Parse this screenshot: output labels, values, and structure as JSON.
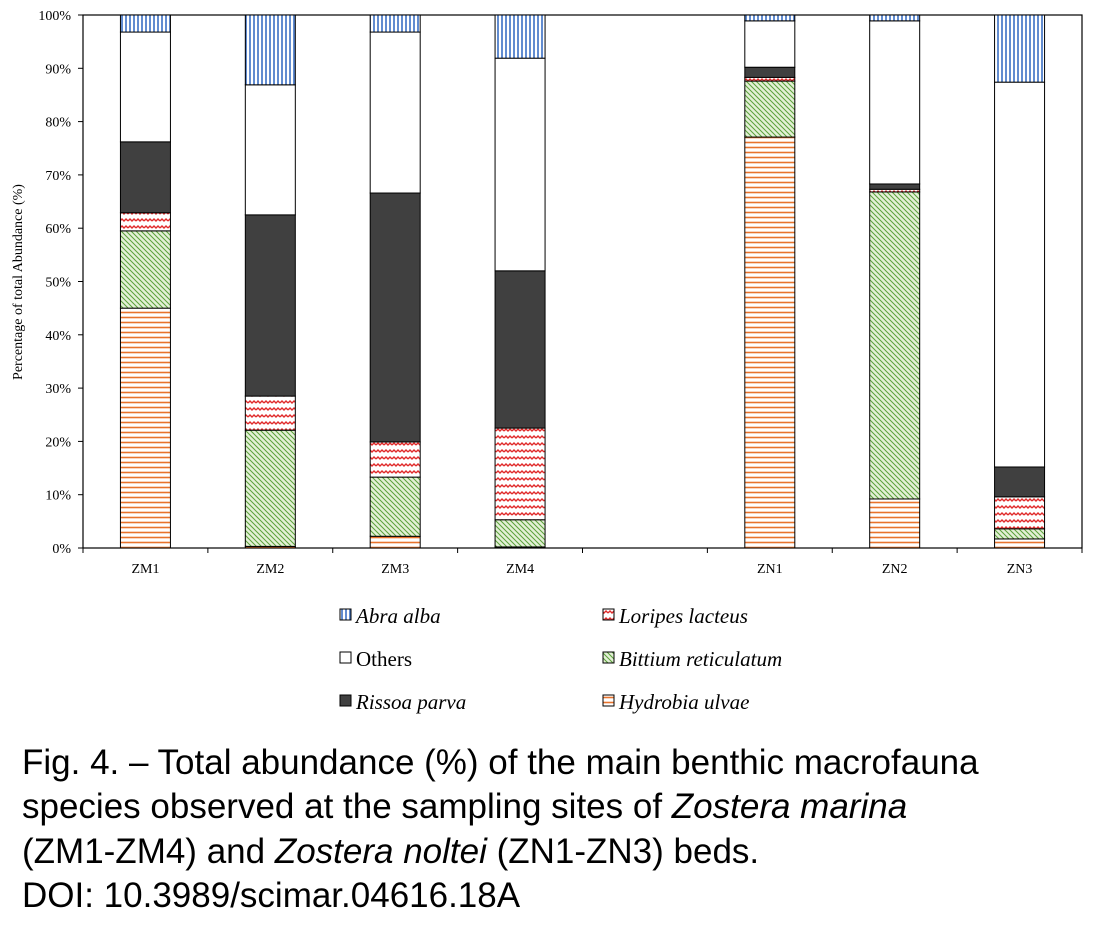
{
  "chart_data": {
    "type": "stacked-bar",
    "ylabel": "Percentage of total Abundance (%)",
    "categories": [
      "ZM1",
      "ZM2",
      "ZM3",
      "ZM4",
      null,
      "ZN1",
      "ZN2",
      "ZN3"
    ],
    "series": [
      {
        "name": "Hydrobia ulvae",
        "color": "#e8732c",
        "values": [
          45,
          0.3,
          2.2,
          0.2,
          null,
          77.1,
          9.2,
          1.7
        ]
      },
      {
        "name": "Bittium reticulatum",
        "color": "#5aa13a",
        "values": [
          14.5,
          21.8,
          11.1,
          5.1,
          null,
          10.5,
          57.6,
          1.9
        ]
      },
      {
        "name": "Loripes lacteus",
        "color": "#e02a2a",
        "values": [
          3.4,
          6.4,
          6.6,
          17.2,
          null,
          0.7,
          0.5,
          6
        ]
      },
      {
        "name": "Rissoa parva",
        "color": "#404040",
        "values": [
          13.3,
          34,
          46.7,
          29.5,
          null,
          1.9,
          1,
          5.6
        ]
      },
      {
        "name": "Others",
        "color": "#ffffff",
        "values": [
          20.6,
          24.4,
          30.2,
          39.9,
          null,
          8.7,
          30.6,
          72.2
        ]
      },
      {
        "name": "Abra alba",
        "color": "#3a6fc4",
        "values": [
          3.2,
          13.1,
          3.2,
          8.1,
          null,
          1.1,
          1.1,
          12.6
        ]
      }
    ],
    "ylim": [
      0,
      100
    ],
    "yticks": [
      {
        "value": 0,
        "label": "0%"
      },
      {
        "value": 10,
        "label": "10%"
      },
      {
        "value": 20,
        "label": "20%"
      },
      {
        "value": 30,
        "label": "30%"
      },
      {
        "value": 40,
        "label": "40%"
      },
      {
        "value": 50,
        "label": "50%"
      },
      {
        "value": 60,
        "label": "60%"
      },
      {
        "value": 70,
        "label": "70%"
      },
      {
        "value": 80,
        "label": "80%"
      },
      {
        "value": 90,
        "label": "90%"
      },
      {
        "value": 100,
        "label": "100%"
      }
    ],
    "grid": false
  },
  "caption": {
    "lines": [
      [
        "Fig. 4. – Total abundance (%) of the main benthic macrofauna"
      ],
      [
        "species observed at the sampling sites of ",
        "Zostera marina"
      ],
      [
        "(ZM1-ZM4) and ",
        "Zostera noltei",
        " (ZN1-ZN3) beds."
      ],
      [
        "DOI: 10.3989/scimar.04616.18A"
      ]
    ]
  }
}
